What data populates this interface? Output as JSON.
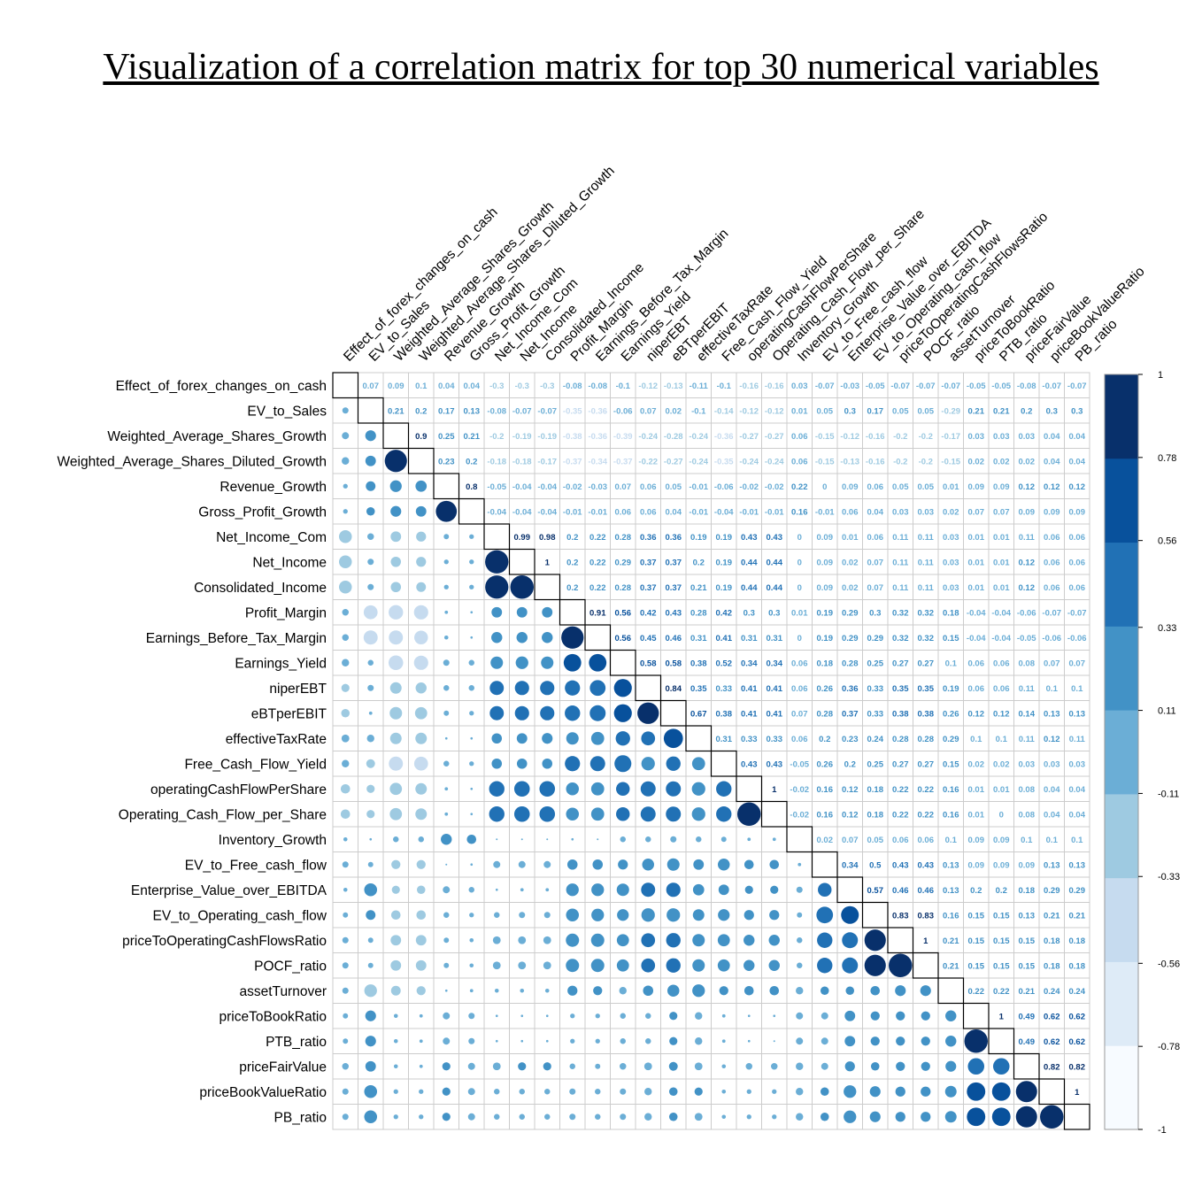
{
  "chart_data": {
    "type": "heatmap",
    "title": "Visualization of a correlation matrix for top 30 numerical variables",
    "variables": [
      "Effect_of_forex_changes_on_cash",
      "EV_to_Sales",
      "Weighted_Average_Shares_Growth",
      "Weighted_Average_Shares_Diluted_Growth",
      "Revenue_Growth",
      "Gross_Profit_Growth",
      "Net_Income_Com",
      "Net_Income",
      "Consolidated_Income",
      "Profit_Margin",
      "Earnings_Before_Tax_Margin",
      "Earnings_Yield",
      "niperEBT",
      "eBTperEBIT",
      "effectiveTaxRate",
      "Free_Cash_Flow_Yield",
      "operatingCashFlowPerShare",
      "Operating_Cash_Flow_per_Share",
      "Inventory_Growth",
      "EV_to_Free_cash_flow",
      "Enterprise_Value_over_EBITDA",
      "EV_to_Operating_cash_flow",
      "priceToOperatingCashFlowsRatio",
      "POCF_ratio",
      "assetTurnover",
      "priceToBookRatio",
      "PTB_ratio",
      "priceFairValue",
      "priceBookValueRatio",
      "PB_ratio"
    ],
    "upper_triangle": [
      [
        "0.07",
        "0.09",
        "0.1",
        "0.04",
        "0.04",
        "-0.3",
        "-0.3",
        "-0.3",
        "-0.08",
        "-0.08",
        "-0.1",
        "-0.12",
        "-0.13",
        "-0.11",
        "-0.1",
        "-0.16",
        "-0.16",
        "0.03",
        "-0.07",
        "-0.03",
        "-0.05",
        "-0.07",
        "-0.07",
        "-0.07",
        "-0.05",
        "-0.05",
        "-0.08",
        "-0.07",
        "-0.07"
      ],
      [
        "0.21",
        "0.2",
        "0.17",
        "0.13",
        "-0.08",
        "-0.07",
        "-0.07",
        "-0.35",
        "-0.36",
        "-0.06",
        "0.07",
        "0.02",
        "-0.1",
        "-0.14",
        "-0.12",
        "-0.12",
        "0.01",
        "0.05",
        "0.3",
        "0.17",
        "0.05",
        "0.05",
        "-0.29",
        "0.21",
        "0.21",
        "0.2",
        "0.3",
        "0.3"
      ],
      [
        "0.9",
        "0.25",
        "0.21",
        "-0.2",
        "-0.19",
        "-0.19",
        "-0.38",
        "-0.36",
        "-0.39",
        "-0.24",
        "-0.28",
        "-0.24",
        "-0.36",
        "-0.27",
        "-0.27",
        "0.06",
        "-0.15",
        "-0.12",
        "-0.16",
        "-0.2",
        "-0.2",
        "-0.17",
        "0.03",
        "0.03",
        "0.03",
        "0.04",
        "0.04"
      ],
      [
        "0.23",
        "0.2",
        "-0.18",
        "-0.18",
        "-0.17",
        "-0.37",
        "-0.34",
        "-0.37",
        "-0.22",
        "-0.27",
        "-0.24",
        "-0.35",
        "-0.24",
        "-0.24",
        "0.06",
        "-0.15",
        "-0.13",
        "-0.16",
        "-0.2",
        "-0.2",
        "-0.15",
        "0.02",
        "0.02",
        "0.02",
        "0.04",
        "0.04"
      ],
      [
        "0.8",
        "-0.05",
        "-0.04",
        "-0.04",
        "-0.02",
        "-0.03",
        "0.07",
        "0.06",
        "0.05",
        "-0.01",
        "-0.06",
        "-0.02",
        "-0.02",
        "0.22",
        "0",
        "0.09",
        "0.06",
        "0.05",
        "0.05",
        "0.01",
        "0.09",
        "0.09",
        "0.12",
        "0.12",
        "0.12"
      ],
      [
        "-0.04",
        "-0.04",
        "-0.04",
        "-0.01",
        "-0.01",
        "0.06",
        "0.06",
        "0.04",
        "-0.01",
        "-0.04",
        "-0.01",
        "-0.01",
        "0.16",
        "-0.01",
        "0.06",
        "0.04",
        "0.03",
        "0.03",
        "0.02",
        "0.07",
        "0.07",
        "0.09",
        "0.09",
        "0.09"
      ],
      [
        "0.99",
        "0.98",
        "0.2",
        "0.22",
        "0.28",
        "0.36",
        "0.36",
        "0.19",
        "0.19",
        "0.43",
        "0.43",
        "0",
        "0.09",
        "0.01",
        "0.06",
        "0.11",
        "0.11",
        "0.03",
        "0.01",
        "0.01",
        "0.11",
        "0.06",
        "0.06"
      ],
      [
        "1",
        "0.2",
        "0.22",
        "0.29",
        "0.37",
        "0.37",
        "0.2",
        "0.19",
        "0.44",
        "0.44",
        "0",
        "0.09",
        "0.02",
        "0.07",
        "0.11",
        "0.11",
        "0.03",
        "0.01",
        "0.01",
        "0.12",
        "0.06",
        "0.06"
      ],
      [
        "0.2",
        "0.22",
        "0.28",
        "0.37",
        "0.37",
        "0.21",
        "0.19",
        "0.44",
        "0.44",
        "0",
        "0.09",
        "0.02",
        "0.07",
        "0.11",
        "0.11",
        "0.03",
        "0.01",
        "0.01",
        "0.12",
        "0.06",
        "0.06"
      ],
      [
        "0.91",
        "0.56",
        "0.42",
        "0.43",
        "0.28",
        "0.42",
        "0.3",
        "0.3",
        "0.01",
        "0.19",
        "0.29",
        "0.3",
        "0.32",
        "0.32",
        "0.18",
        "-0.04",
        "-0.04",
        "-0.06",
        "-0.07",
        "-0.07"
      ],
      [
        "0.56",
        "0.45",
        "0.46",
        "0.31",
        "0.41",
        "0.31",
        "0.31",
        "0",
        "0.19",
        "0.29",
        "0.29",
        "0.32",
        "0.32",
        "0.15",
        "-0.04",
        "-0.04",
        "-0.05",
        "-0.06",
        "-0.06"
      ],
      [
        "0.58",
        "0.58",
        "0.38",
        "0.52",
        "0.34",
        "0.34",
        "0.06",
        "0.18",
        "0.28",
        "0.25",
        "0.27",
        "0.27",
        "0.1",
        "0.06",
        "0.06",
        "0.08",
        "0.07",
        "0.07"
      ],
      [
        "0.84",
        "0.35",
        "0.33",
        "0.41",
        "0.41",
        "0.06",
        "0.26",
        "0.36",
        "0.33",
        "0.35",
        "0.35",
        "0.19",
        "0.06",
        "0.06",
        "0.11",
        "0.1",
        "0.1"
      ],
      [
        "0.67",
        "0.38",
        "0.41",
        "0.41",
        "0.07",
        "0.28",
        "0.37",
        "0.33",
        "0.38",
        "0.38",
        "0.26",
        "0.12",
        "0.12",
        "0.14",
        "0.13",
        "0.13"
      ],
      [
        "0.31",
        "0.33",
        "0.33",
        "0.06",
        "0.2",
        "0.23",
        "0.24",
        "0.28",
        "0.28",
        "0.29",
        "0.1",
        "0.1",
        "0.11",
        "0.12",
        "0.11"
      ],
      [
        "0.43",
        "0.43",
        "-0.05",
        "0.26",
        "0.2",
        "0.25",
        "0.27",
        "0.27",
        "0.15",
        "0.02",
        "0.02",
        "0.03",
        "0.03",
        "0.03"
      ],
      [
        "1",
        "-0.02",
        "0.16",
        "0.12",
        "0.18",
        "0.22",
        "0.22",
        "0.16",
        "0.01",
        "0.01",
        "0.08",
        "0.04",
        "0.04"
      ],
      [
        "-0.02",
        "0.16",
        "0.12",
        "0.18",
        "0.22",
        "0.22",
        "0.16",
        "0.01",
        "0",
        "0.08",
        "0.04",
        "0.04"
      ],
      [
        "0.02",
        "0.07",
        "0.05",
        "0.06",
        "0.06",
        "0.1",
        "0.09",
        "0.09",
        "0.1",
        "0.1",
        "0.1"
      ],
      [
        "0.34",
        "0.5",
        "0.43",
        "0.43",
        "0.13",
        "0.09",
        "0.09",
        "0.09",
        "0.13",
        "0.13"
      ],
      [
        "0.57",
        "0.46",
        "0.46",
        "0.13",
        "0.2",
        "0.2",
        "0.18",
        "0.29",
        "0.29"
      ],
      [
        "0.83",
        "0.83",
        "0.16",
        "0.15",
        "0.15",
        "0.13",
        "0.21",
        "0.21"
      ],
      [
        "1",
        "0.21",
        "0.15",
        "0.15",
        "0.15",
        "0.18",
        "0.18"
      ],
      [
        "0.21",
        "0.15",
        "0.15",
        "0.15",
        "0.18",
        "0.18"
      ],
      [
        "0.22",
        "0.22",
        "0.21",
        "0.24",
        "0.24"
      ],
      [
        "1",
        "0.49",
        "0.62",
        "0.62"
      ],
      [
        "0.49",
        "0.62",
        "0.62"
      ],
      [
        "0.82",
        "0.82"
      ],
      [
        "1"
      ],
      []
    ],
    "colorbar_ticks": [
      "1",
      "0.78",
      "0.56",
      "0.33",
      "0.11",
      "-0.11",
      "-0.33",
      "-0.56",
      "-0.78",
      "-1"
    ],
    "color_scale": [
      "#f7fbff",
      "#deebf7",
      "#c6dbef",
      "#9ecae1",
      "#6baed6",
      "#4292c6",
      "#2171b5",
      "#08519c",
      "#08306b"
    ],
    "lower_triangle": "circles (size and color by correlation)",
    "legend": "right",
    "range": [
      -1,
      1
    ]
  }
}
